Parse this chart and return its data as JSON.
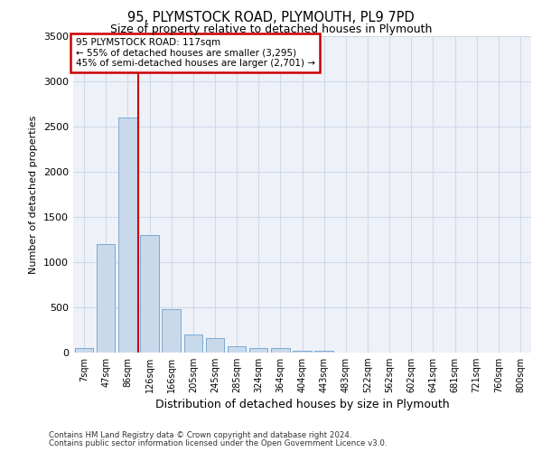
{
  "title_line1": "95, PLYMSTOCK ROAD, PLYMOUTH, PL9 7PD",
  "title_line2": "Size of property relative to detached houses in Plymouth",
  "xlabel": "Distribution of detached houses by size in Plymouth",
  "ylabel": "Number of detached properties",
  "bar_labels": [
    "7sqm",
    "47sqm",
    "86sqm",
    "126sqm",
    "166sqm",
    "205sqm",
    "245sqm",
    "285sqm",
    "324sqm",
    "364sqm",
    "404sqm",
    "443sqm",
    "483sqm",
    "522sqm",
    "562sqm",
    "602sqm",
    "641sqm",
    "681sqm",
    "721sqm",
    "760sqm",
    "800sqm"
  ],
  "bar_values": [
    50,
    1200,
    2600,
    1300,
    480,
    200,
    160,
    75,
    50,
    50,
    25,
    20,
    5,
    2,
    2,
    1,
    1,
    0,
    0,
    0,
    0
  ],
  "bar_color": "#c9d9ec",
  "bar_edgecolor": "#7aaad0",
  "vline_color": "#cc0000",
  "annotation_text": "95 PLYMSTOCK ROAD: 117sqm\n← 55% of detached houses are smaller (3,295)\n45% of semi-detached houses are larger (2,701) →",
  "annotation_box_color": "#cc0000",
  "annotation_box_fill": "#ffffff",
  "ylim": [
    0,
    3500
  ],
  "yticks": [
    0,
    500,
    1000,
    1500,
    2000,
    2500,
    3000,
    3500
  ],
  "grid_color": "#d0d8e8",
  "background_color": "#eef2f8",
  "footer_line1": "Contains HM Land Registry data © Crown copyright and database right 2024.",
  "footer_line2": "Contains public sector information licensed under the Open Government Licence v3.0."
}
